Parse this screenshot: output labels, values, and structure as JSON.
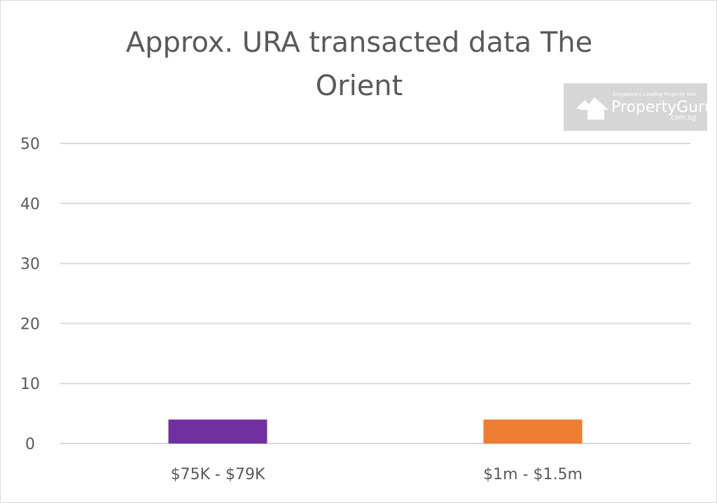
{
  "chart_data": {
    "type": "bar",
    "title": "Approx. URA transacted data The Orient",
    "title_lines": [
      "Approx. URA transacted data The",
      "Orient"
    ],
    "categories": [
      "$75K - $79K",
      "$1m - $1.5m"
    ],
    "values": [
      4,
      4
    ],
    "colors": [
      "#7030a0",
      "#ed7d31"
    ],
    "ylim": [
      0,
      50
    ],
    "yticks": [
      "0",
      "10",
      "20",
      "30",
      "40",
      "50"
    ],
    "grid": true,
    "xlabel": "",
    "ylabel": ""
  },
  "watermark": {
    "tagline": "Singapore's Leading Property Site",
    "name": "PropertyGuru",
    "domain": ".com.sg"
  }
}
